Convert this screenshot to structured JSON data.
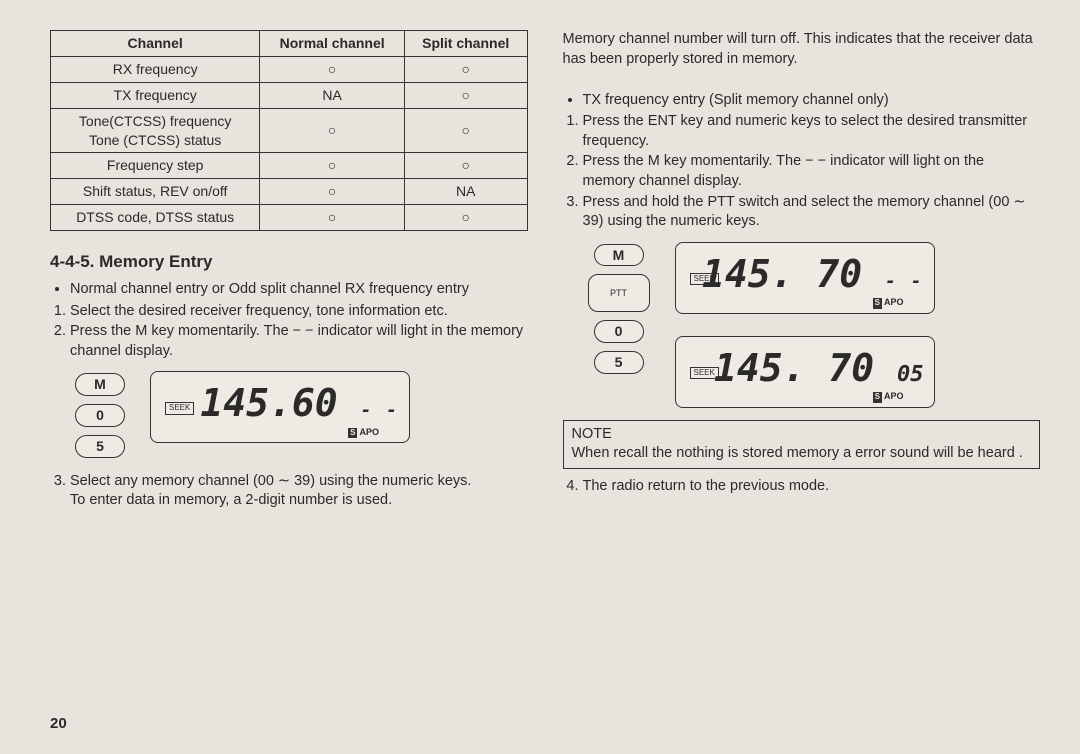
{
  "table": {
    "headers": [
      "Channel",
      "Normal channel",
      "Split channel"
    ],
    "rows": [
      [
        "RX frequency",
        "○",
        "○"
      ],
      [
        "TX frequency",
        "NA",
        "○"
      ],
      [
        "Tone(CTCSS) frequency\nTone (CTCSS) status",
        "○",
        "○"
      ],
      [
        "Frequency step",
        "○",
        "○"
      ],
      [
        "Shift status, REV on/off",
        "○",
        "NA"
      ],
      [
        "DTSS code, DTSS status",
        "○",
        "○"
      ]
    ]
  },
  "section_title": "4-4-5. Memory Entry",
  "left": {
    "b1": "Normal channel entry or Odd split channel RX frequency entry",
    "n1": "Select the desired receiver frequency, tone information etc.",
    "n2": "Press the M key momentarily. The − − indicator will light in the memory channel display.",
    "keys": {
      "m": "M",
      "zero": "0",
      "five": "5"
    },
    "disp": {
      "seek": "SEEK",
      "freq": "145.60",
      "dash": "- -",
      "apo": "APO"
    },
    "n3": "Select any memory channel (00 ∼ 39) using the numeric keys.",
    "n3b": "To enter data in memory, a 2-digit number is used."
  },
  "right": {
    "p1": "Memory channel number will turn off. This indicates that the receiver data has been properly stored in memory.",
    "b1": "TX frequency entry (Split memory channel only)",
    "n1": "Press the ENT key and numeric keys to select the desired transmitter frequency.",
    "n2": "Press the M key momentarily. The − − indicator will light on the memory channel display.",
    "n3": "Press and hold the PTT switch and select the memory channel (00 ∼ 39) using the numeric keys.",
    "keys": {
      "m": "M",
      "ptt": "PTT",
      "zero": "0",
      "five": "5"
    },
    "disp1": {
      "seek": "SEEK",
      "freq": "145. 70",
      "dash": "- -",
      "apo": "APO"
    },
    "disp2": {
      "seek": "SEEK",
      "freq": "145. 70",
      "ch": "05",
      "apo": "APO"
    },
    "note_title": "NOTE",
    "note_body": "When recall the nothing is stored memory a error sound will be heard .",
    "n4": "The radio return to the previous mode."
  },
  "page_number": "20"
}
